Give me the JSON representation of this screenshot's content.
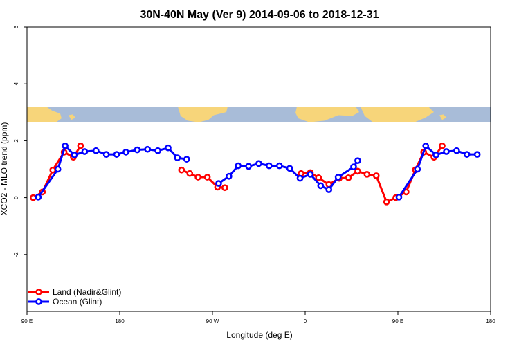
{
  "chart_data": {
    "type": "line",
    "title": "30N-40N May (Ver 9)   2014-09-06 to 2018-12-31",
    "xlabel": "Longitude (deg E)",
    "ylabel": "XCO2 - MLO trend (ppm)",
    "xlim": [
      90,
      540
    ],
    "ylim": [
      -4,
      6
    ],
    "x_ticks": [
      {
        "value": 90,
        "label": "90 E"
      },
      {
        "value": 180,
        "label": "180"
      },
      {
        "value": 270,
        "label": "90 W"
      },
      {
        "value": 360,
        "label": "0"
      },
      {
        "value": 450,
        "label": "90 E"
      },
      {
        "value": 540,
        "label": "180"
      }
    ],
    "y_ticks": [
      {
        "value": -2,
        "label": "-2"
      },
      {
        "value": 0,
        "label": "0"
      },
      {
        "value": 2,
        "label": "2"
      },
      {
        "value": 4,
        "label": "4"
      },
      {
        "value": 6,
        "label": "6"
      }
    ],
    "grid": false,
    "legend_position": "bottom-left",
    "map_strip": {
      "y_range": [
        2.65,
        3.2
      ],
      "ocean_color": "#a8bcd8",
      "land_color": "#f7d57a"
    },
    "series": [
      {
        "name": "Land (Nadir&Glint)",
        "color": "#ff0000",
        "segments": [
          [
            [
              96,
              0.0
            ],
            [
              105,
              0.2
            ],
            [
              115,
              0.97
            ],
            [
              126,
              1.6
            ],
            [
              135,
              1.42
            ],
            [
              142,
              1.82
            ]
          ],
          [
            [
              240,
              0.97
            ],
            [
              248,
              0.85
            ],
            [
              256,
              0.72
            ],
            [
              265,
              0.72
            ],
            [
              275,
              0.37
            ],
            [
              282,
              0.35
            ]
          ],
          [
            [
              356,
              0.85
            ],
            [
              365,
              0.88
            ],
            [
              373,
              0.7
            ],
            [
              383,
              0.46
            ],
            [
              393,
              0.68
            ],
            [
              402,
              0.7
            ],
            [
              411,
              0.93
            ],
            [
              420,
              0.82
            ],
            [
              429,
              0.77
            ],
            [
              439,
              -0.15
            ],
            [
              448,
              0.0
            ],
            [
              458,
              0.2
            ],
            [
              467,
              0.98
            ],
            [
              475,
              1.6
            ],
            [
              485,
              1.42
            ],
            [
              493,
              1.82
            ]
          ]
        ]
      },
      {
        "name": "Ocean (Glint)",
        "color": "#0000ff",
        "segments": [
          [
            [
              101,
              0.02
            ],
            [
              120,
              1.0
            ],
            [
              127,
              1.82
            ],
            [
              136,
              1.5
            ],
            [
              146,
              1.62
            ],
            [
              157,
              1.65
            ],
            [
              167,
              1.52
            ],
            [
              177,
              1.52
            ],
            [
              186,
              1.6
            ],
            [
              197,
              1.68
            ],
            [
              207,
              1.7
            ],
            [
              217,
              1.65
            ],
            [
              227,
              1.75
            ],
            [
              236,
              1.4
            ],
            [
              245,
              1.35
            ]
          ],
          [
            [
              276,
              0.5
            ],
            [
              286,
              0.75
            ],
            [
              295,
              1.12
            ],
            [
              305,
              1.1
            ],
            [
              315,
              1.2
            ],
            [
              325,
              1.12
            ],
            [
              335,
              1.12
            ],
            [
              345,
              1.03
            ],
            [
              355,
              0.68
            ],
            [
              365,
              0.82
            ],
            [
              375,
              0.42
            ],
            [
              383,
              0.28
            ],
            [
              392,
              0.72
            ],
            [
              407,
              1.08
            ],
            [
              411,
              1.3
            ]
          ]
        ]
      },
      {
        "name": "Ocean (Glint)",
        "color": "#0000ff",
        "segments": [
          [
            [
              451,
              0.02
            ],
            [
              469,
              1.0
            ],
            [
              477,
              1.82
            ],
            [
              487,
              1.5
            ],
            [
              497,
              1.62
            ],
            [
              507,
              1.65
            ],
            [
              517,
              1.52
            ],
            [
              527,
              1.52
            ]
          ]
        ]
      }
    ],
    "legend": [
      {
        "label": "Land (Nadir&Glint)",
        "color": "#ff0000"
      },
      {
        "label": "Ocean (Glint)",
        "color": "#0000ff"
      }
    ]
  }
}
